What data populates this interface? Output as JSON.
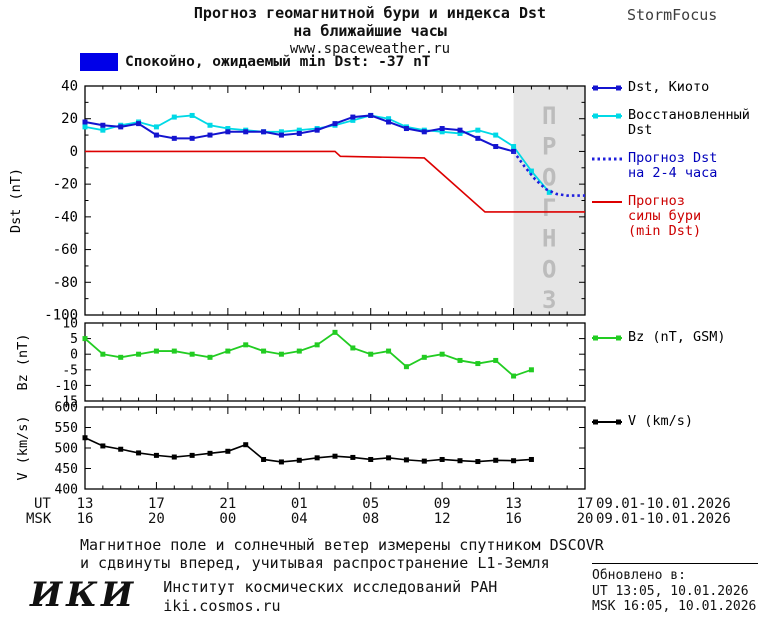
{
  "header": {
    "title_line1": "Прогноз геомагнитной бури и индекса Dst",
    "title_line2": "на ближайшие часы",
    "website": "www.spaceweather.ru",
    "brand": "StormFocus"
  },
  "status": {
    "text": "Спокойно, ожидаемый min Dst: -37 nT",
    "box_color": "#0000e8"
  },
  "chart_data": {
    "type": "line",
    "title": "Прогноз геомагнитной бури и индекса Dst на ближайшие часы",
    "x_axis": {
      "range_hours": [
        0,
        28
      ],
      "major_tick_hours": [
        0,
        4,
        8,
        12,
        16,
        20,
        24,
        28
      ],
      "ut_row_label": "UT",
      "msk_row_label": "MSK",
      "ut_tick_labels": [
        "13",
        "17",
        "21",
        "01",
        "05",
        "09",
        "13",
        "17"
      ],
      "msk_tick_labels": [
        "16",
        "20",
        "00",
        "04",
        "08",
        "12",
        "16",
        "20"
      ],
      "ut_date_range": "09.01-10.01.2026",
      "msk_date_range": "09.01-10.01.2026"
    },
    "panels": [
      {
        "name": "dst",
        "ylabel": "Dst (nT)",
        "ylim": [
          -100,
          40
        ],
        "yticks": [
          40,
          20,
          0,
          -20,
          -40,
          -60,
          -80,
          -100
        ],
        "ytick_minor_step": 10,
        "forecast_band": {
          "from_hour": 24,
          "to_hour": 28,
          "label": "ПРОГНОЗ",
          "fill": "#e5e5e5",
          "text_color": "#bcbcbc"
        },
        "draw_order": [
          3,
          1,
          0,
          2
        ],
        "series": [
          {
            "name": "Dst, Киото",
            "legend_lines": [
              "Dst, Киото"
            ],
            "legend_text_color": "#000000",
            "color": "#1414cf",
            "style": "solid",
            "marker": "square",
            "width": 2,
            "x_start": 0,
            "x_step": 1,
            "y": [
              18,
              16,
              15,
              17,
              10,
              8,
              8,
              10,
              12,
              12,
              12,
              10,
              11,
              13,
              17,
              21,
              22,
              18,
              14,
              12,
              14,
              13,
              8,
              3,
              0
            ]
          },
          {
            "name": "Восстановленный Dst",
            "legend_lines": [
              "Восстановленный",
              "Dst"
            ],
            "legend_text_color": "#000000",
            "color": "#00d9e6",
            "style": "solid",
            "marker": "square",
            "width": 1.8,
            "x_start": 0,
            "x_step": 1,
            "y": [
              15,
              13,
              16,
              18,
              15,
              21,
              22,
              16,
              14,
              13,
              12,
              12,
              13,
              14,
              16,
              19,
              22,
              20,
              15,
              13,
              12,
              11,
              13,
              10,
              3,
              -12,
              -25
            ]
          },
          {
            "name": "Прогноз Dst на 2-4 часа",
            "legend_lines": [
              "Прогноз Dst",
              "на 2-4 часа"
            ],
            "legend_text_color": "#0000bb",
            "color": "#2020dd",
            "style": "dotted",
            "marker": "none",
            "width": 2.6,
            "x": [
              24,
              24.6,
              25.2,
              25.8,
              26.4,
              27,
              27.6,
              28
            ],
            "y": [
              0,
              -9,
              -17,
              -23,
              -26,
              -27,
              -27,
              -27
            ]
          },
          {
            "name": "Прогноз силы бури (min Dst)",
            "legend_lines": [
              "Прогноз",
              "силы бури",
              "(min Dst)"
            ],
            "legend_text_color": "#cc0000",
            "color": "#dd0000",
            "style": "solid",
            "marker": "none",
            "width": 1.6,
            "x": [
              0,
              14,
              14.3,
              19,
              22.4,
              28
            ],
            "y": [
              0,
              0,
              -3,
              -4,
              -37,
              -37
            ]
          }
        ]
      },
      {
        "name": "bz",
        "ylabel": "Bz (nT)",
        "ylim": [
          -15,
          10
        ],
        "yticks": [
          10,
          5,
          0,
          -5,
          -10,
          -15
        ],
        "draw_order": [
          0
        ],
        "series": [
          {
            "name": "Bz (nT, GSM)",
            "legend_lines": [
              "Bz (nT, GSM)"
            ],
            "legend_text_color": "#000000",
            "color": "#22cc22",
            "style": "solid",
            "marker": "square",
            "width": 1.8,
            "x_start": 0,
            "x_step": 1,
            "y": [
              5,
              0,
              -1,
              0,
              1,
              1,
              0,
              -1,
              1,
              3,
              1,
              0,
              1,
              3,
              7,
              2,
              0,
              1,
              -4,
              -1,
              0,
              -2,
              -3,
              -2,
              -7,
              -5
            ]
          }
        ]
      },
      {
        "name": "v",
        "ylabel": "V (km/s)",
        "ylim": [
          400,
          600
        ],
        "yticks": [
          600,
          550,
          500,
          450,
          400
        ],
        "draw_order": [
          0
        ],
        "series": [
          {
            "name": "V (km/s)",
            "legend_lines": [
              "V (km/s)"
            ],
            "legend_text_color": "#000000",
            "color": "#000000",
            "style": "solid",
            "marker": "square",
            "width": 1.6,
            "x_start": 0,
            "x_step": 1,
            "y": [
              525,
              505,
              497,
              488,
              482,
              478,
              482,
              487,
              492,
              508,
              472,
              466,
              470,
              476,
              480,
              477,
              472,
              476,
              471,
              468,
              472,
              469,
              467,
              470,
              469,
              472
            ]
          }
        ]
      }
    ]
  },
  "footer": {
    "note_line1": "Магнитное поле и солнечный ветер измерены спутником DSCOVR",
    "note_line2": "и сдвинуты вперед, учитывая распространение L1-Земля",
    "updated": {
      "title": "Обновлено в:",
      "ut": "UT  13:05, 10.01.2026",
      "msk": "MSK 16:05, 10.01.2026"
    },
    "institute": {
      "logo": "ИКИ",
      "name": "Институт космических исследований РАН",
      "site": "iki.cosmos.ru"
    }
  }
}
